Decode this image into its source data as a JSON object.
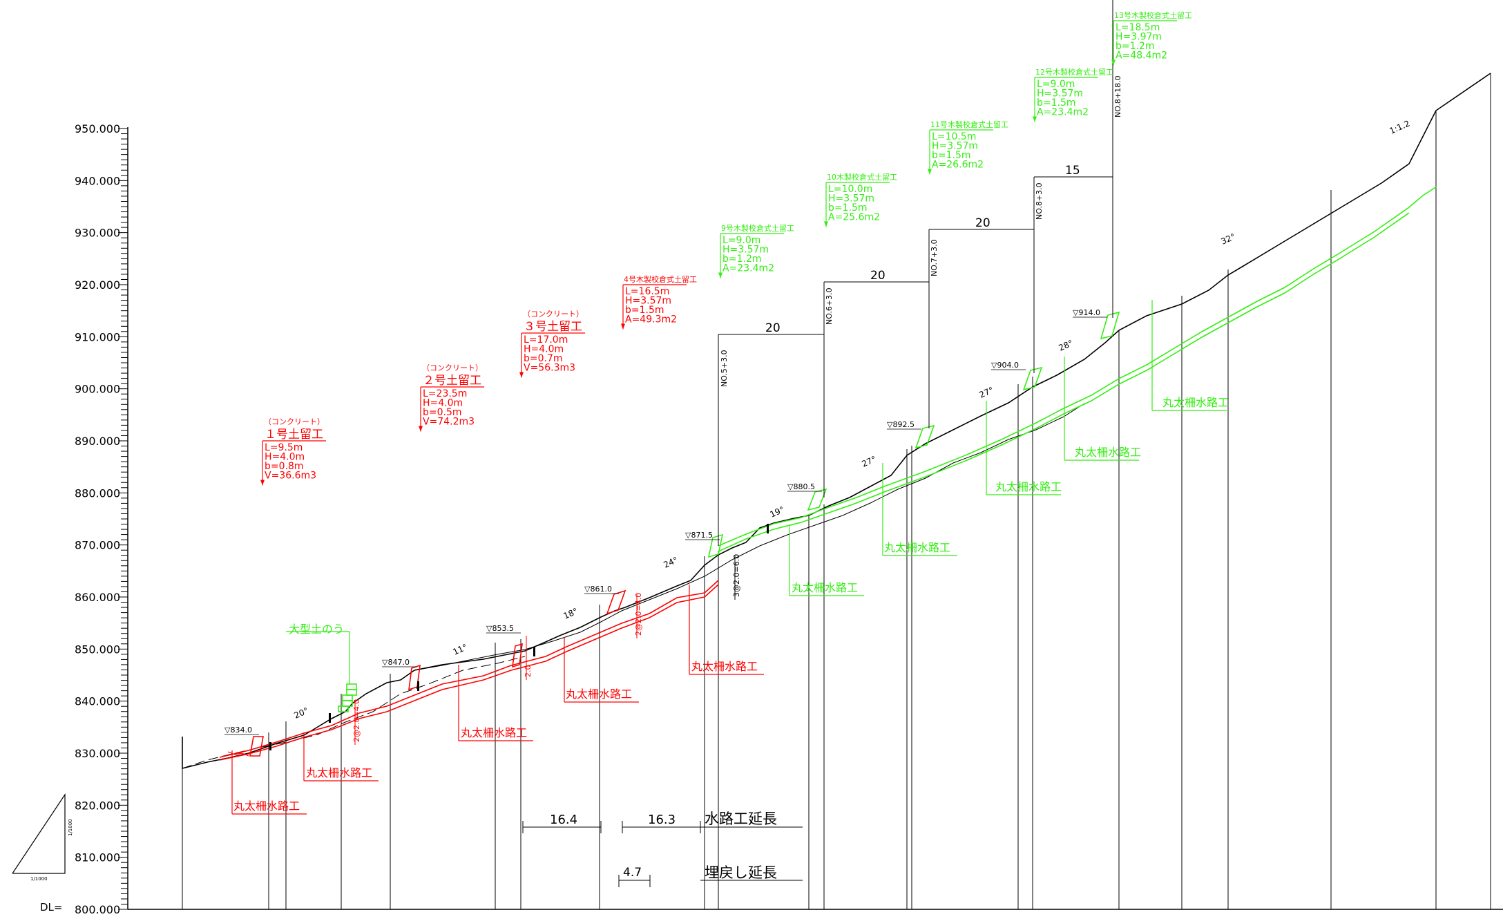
{
  "colors": {
    "ink": "#000000",
    "concrete": "#ff0000",
    "wood": "#33ee11"
  },
  "scale": {
    "v_label": "1/1000",
    "h_label": "1/1000"
  },
  "axis": {
    "dl_label": "DL=",
    "elev_min": 800,
    "elev_max": 950,
    "tick_labels": [
      "800.000",
      "810.000",
      "820.000",
      "830.000",
      "840.000",
      "850.000",
      "860.000",
      "870.000",
      "880.000",
      "890.000",
      "900.000",
      "910.000",
      "920.000",
      "930.000",
      "940.000",
      "950.000"
    ]
  },
  "retaining_walls": [
    {
      "title_note": "（コンクリート）",
      "title": "１号土留工",
      "specs": [
        "L=9.5m",
        "H=4.0m",
        "b=0.8m",
        "V=36.6m3"
      ],
      "color": "concrete"
    },
    {
      "title_note": "（コンクリート）",
      "title": "２号土留工",
      "specs": [
        "L=23.5m",
        "H=4.0m",
        "b=0.5m",
        "V=74.2m3"
      ],
      "color": "concrete"
    },
    {
      "title_note": "（コンクリート）",
      "title": "３号土留工",
      "specs": [
        "L=17.0m",
        "H=4.0m",
        "b=0.7m",
        "V=56.3m3"
      ],
      "color": "concrete"
    },
    {
      "title_note": "",
      "title": "4号木製校倉式土留工",
      "specs": [
        "L=16.5m",
        "H=3.57m",
        "b=1.5m",
        "A=49.3m2"
      ],
      "color": "concrete"
    },
    {
      "title_note": "",
      "title": "9号木製校倉式土留工",
      "specs": [
        "L=9.0m",
        "H=3.57m",
        "b=1.2m",
        "A=23.4m2"
      ],
      "color": "wood"
    },
    {
      "title_note": "",
      "title": "10木製校倉式土留工",
      "specs": [
        "L=10.0m",
        "H=3.57m",
        "b=1.5m",
        "A=25.6m2"
      ],
      "color": "wood"
    },
    {
      "title_note": "",
      "title": "11号木製校倉式土留工",
      "specs": [
        "L=10.5m",
        "H=3.57m",
        "b=1.5m",
        "A=26.6m2"
      ],
      "color": "wood"
    },
    {
      "title_note": "",
      "title": "12号木製校倉式土留工",
      "specs": [
        "L=9.0m",
        "H=3.57m",
        "b=1.5m",
        "A=23.4m2"
      ],
      "color": "wood"
    },
    {
      "title_note": "",
      "title": "13号木製校倉式土留工",
      "specs": [
        "L=18.5m",
        "H=3.97m",
        "b=1.2m",
        "A=48.4m2"
      ],
      "color": "wood"
    }
  ],
  "elevation_marks": [
    "▽834.0",
    "▽847.0",
    "▽853.5",
    "▽861.0",
    "▽871.5",
    "▽880.5",
    "▽892.5",
    "▽904.0",
    "▽914.0"
  ],
  "slope_angles": [
    "20°",
    "11°",
    "18°",
    "24°",
    "19°",
    "27°",
    "27°",
    "28°",
    "32°",
    "1:1.2"
  ],
  "stations": [
    "NO.5+3.0",
    "NO.6+3.0",
    "NO.7+3.0",
    "NO.8+3.0",
    "NO.8+18.0"
  ],
  "station_spacings": [
    "20",
    "20",
    "20",
    "15"
  ],
  "waterways": [
    {
      "label": "丸太柵水路工",
      "color": "concrete"
    },
    {
      "label": "丸太柵水路工",
      "color": "concrete"
    },
    {
      "label": "丸太柵水路工",
      "color": "concrete"
    },
    {
      "label": "丸太柵水路工",
      "color": "concrete"
    },
    {
      "label": "丸太柵水路工",
      "color": "concrete"
    },
    {
      "label": "丸太柵水路工",
      "color": "wood"
    },
    {
      "label": "丸太柵水路工",
      "color": "wood"
    },
    {
      "label": "丸太柵水路工",
      "color": "wood"
    },
    {
      "label": "丸太柵水路工",
      "color": "wood"
    },
    {
      "label": "丸太柵水路工",
      "color": "wood"
    }
  ],
  "big_sandbag_label": "大型土のう",
  "vertical_dims": [
    "2@2.0=4.0",
    "2@2.0=4.0",
    "2.0",
    "3@2.0=6.0"
  ],
  "length_summary": {
    "waterway_values": [
      "16.4",
      "16.3"
    ],
    "waterway_label": "水路工延長",
    "backfill_value": "4.7",
    "backfill_label": "埋戻し延長"
  }
}
